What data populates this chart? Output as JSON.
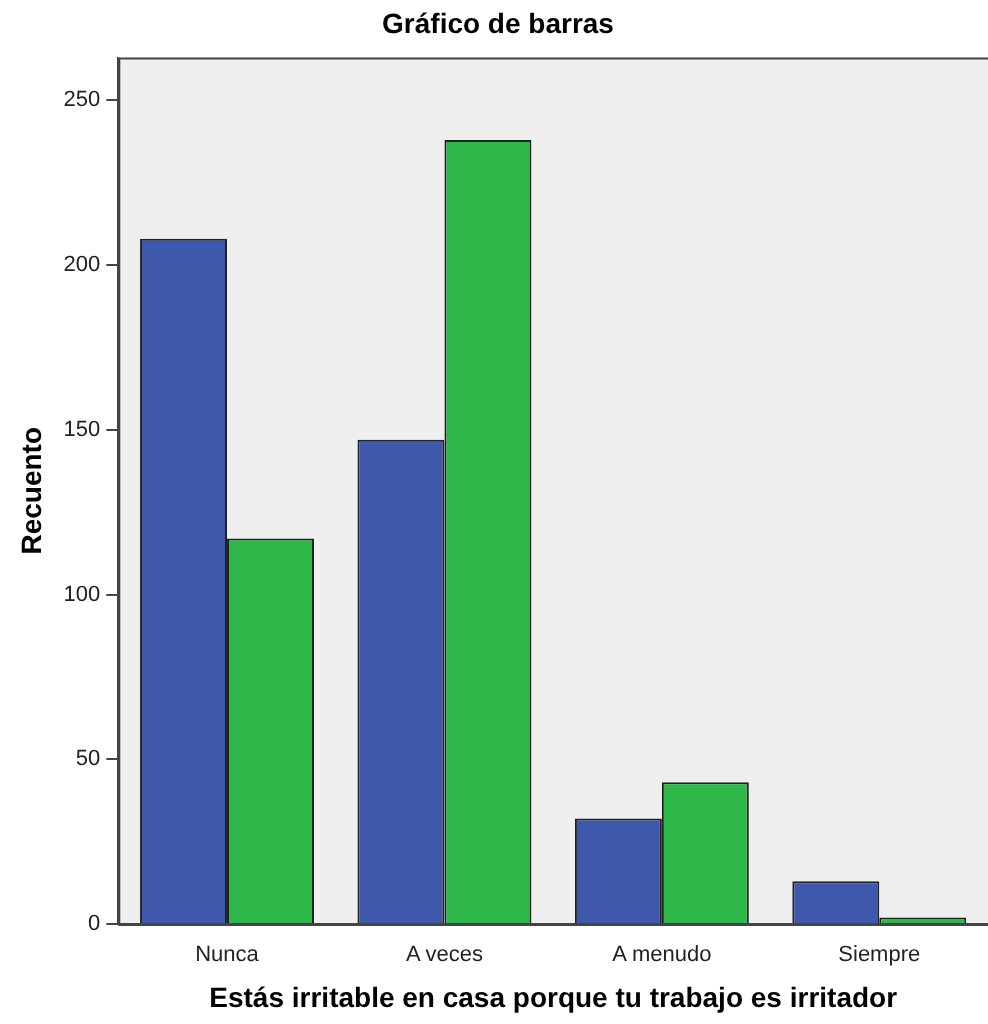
{
  "chart_data": {
    "type": "bar",
    "title": "Gráfico de barras",
    "xlabel": "Estás irritable en casa porque tu trabajo es irritador",
    "ylabel": "Recuento",
    "categories": [
      "Nunca",
      "A veces",
      "A menudo",
      "Siempre"
    ],
    "series": [
      {
        "color": "#3e58ac",
        "values": [
          208,
          147,
          32,
          13
        ]
      },
      {
        "color": "#2eb84a",
        "values": [
          117,
          238,
          43,
          2
        ]
      }
    ],
    "ylim": [
      0,
      263
    ],
    "yticks": [
      0,
      50,
      100,
      150,
      200,
      250
    ],
    "grid": false,
    "legend": false
  }
}
